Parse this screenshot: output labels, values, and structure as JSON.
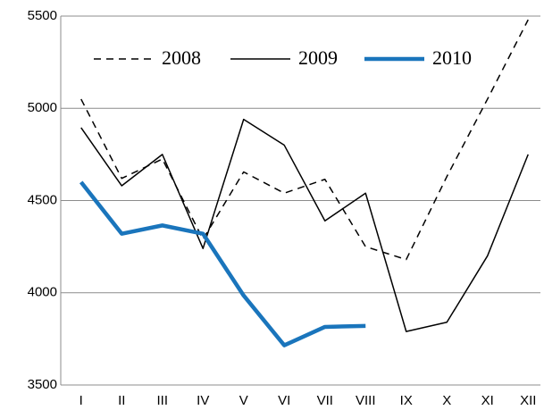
{
  "chart_data": {
    "type": "line",
    "categories": [
      "I",
      "II",
      "III",
      "IV",
      "V",
      "VI",
      "VII",
      "VIII",
      "IX",
      "X",
      "XI",
      "XII"
    ],
    "series": [
      {
        "name": "2008",
        "color": "#000000",
        "dash": true,
        "width": 1.5,
        "values": [
          5050,
          4620,
          4725,
          4290,
          4655,
          4540,
          4615,
          4250,
          4180,
          4630,
          5050,
          5480
        ]
      },
      {
        "name": "2009",
        "color": "#000000",
        "dash": false,
        "width": 1.5,
        "values": [
          4895,
          4580,
          4750,
          4240,
          4940,
          4800,
          4390,
          4540,
          3790,
          3840,
          4200,
          4750
        ]
      },
      {
        "name": "2010",
        "color": "#1a75bc",
        "dash": false,
        "width": 4.5,
        "values": [
          4600,
          4320,
          4365,
          4320,
          3985,
          3715,
          3815,
          3820,
          null,
          null,
          null,
          null
        ]
      }
    ],
    "ylim": [
      3500,
      5500
    ],
    "yticks": [
      3500,
      4000,
      4500,
      5000,
      5500
    ],
    "grid": true,
    "legend": "top"
  }
}
